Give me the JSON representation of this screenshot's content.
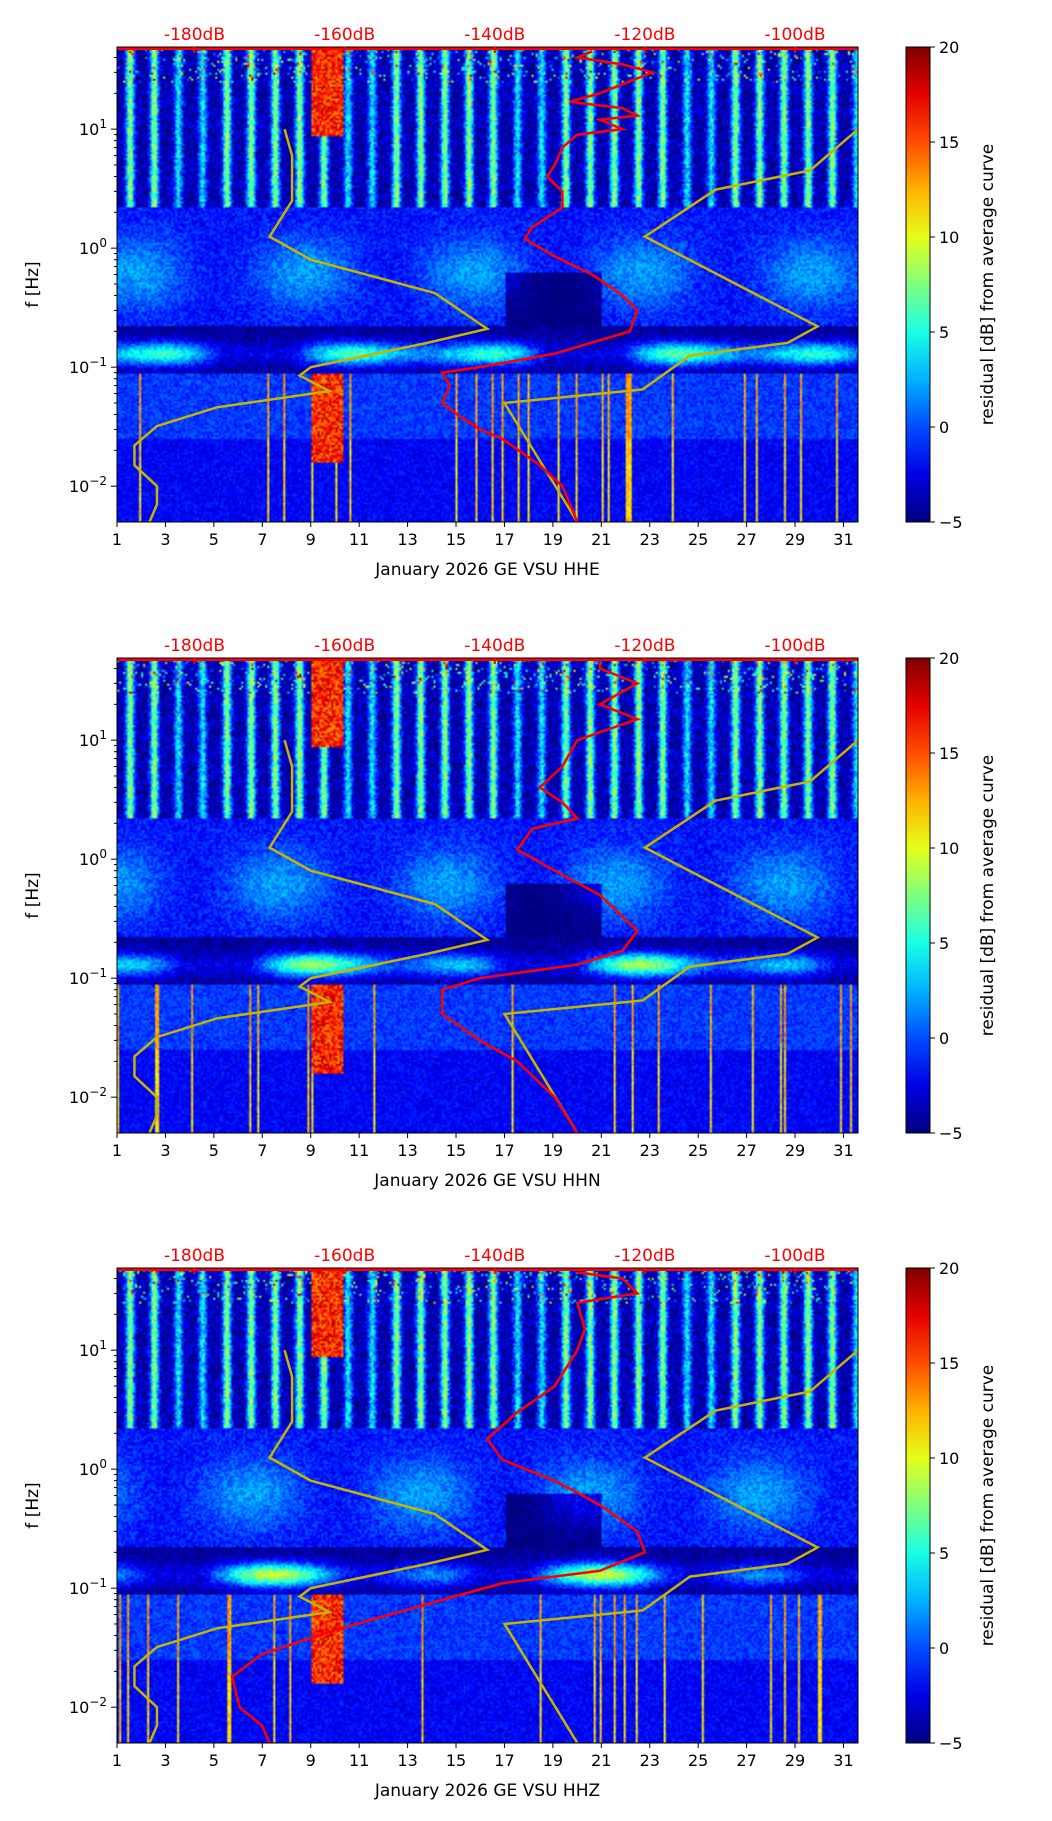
{
  "colorbar": {
    "label": "residual [dB] from average curve",
    "range": [
      -5,
      20
    ],
    "ticks": [
      -5,
      0,
      5,
      10,
      15,
      20
    ],
    "colormap": "jet"
  },
  "noise_models": {
    "low": [
      [
        -168,
        10
      ],
      [
        -167,
        6
      ],
      [
        -167,
        2.5
      ],
      [
        -170,
        1.25
      ],
      [
        -164.5,
        0.8
      ],
      [
        -148,
        0.42
      ],
      [
        -141,
        0.21
      ],
      [
        -149,
        0.16
      ],
      [
        -164.5,
        0.1
      ],
      [
        -166,
        0.085
      ],
      [
        -162,
        0.063
      ],
      [
        -177,
        0.046
      ],
      [
        -185,
        0.032
      ],
      [
        -188,
        0.022
      ],
      [
        -188,
        0.015
      ],
      [
        -185,
        0.01
      ],
      [
        -185,
        0.007
      ],
      [
        -186,
        0.005
      ]
    ],
    "high": [
      [
        -91.6,
        10
      ],
      [
        -98,
        4.5
      ],
      [
        -110.6,
        3.1
      ],
      [
        -120,
        1.25
      ],
      [
        -97,
        0.22
      ],
      [
        -101,
        0.16
      ],
      [
        -114,
        0.125
      ],
      [
        -120.3,
        0.065
      ],
      [
        -138.7,
        0.05
      ],
      [
        -129,
        0.005
      ]
    ],
    "color": "#c8b400"
  },
  "chart_data": [
    {
      "type": "heatmap",
      "channel": "HHE",
      "xlabel": "January 2026 GE VSU  HHE",
      "ylabel": "f [Hz]",
      "xlim": [
        1,
        31.6
      ],
      "ylim": [
        0.005,
        49
      ],
      "yscale": "log",
      "xticks": [
        1,
        3,
        5,
        7,
        9,
        11,
        13,
        15,
        17,
        19,
        21,
        23,
        25,
        27,
        29,
        31
      ],
      "yticks": [
        "10^-2",
        "10^-1",
        "10^0",
        "10^1"
      ],
      "top_axis": {
        "ticks_db": [
          -180,
          -160,
          -140,
          -120,
          -100
        ],
        "labels": [
          "-180dB",
          "-160dB",
          "-140dB",
          "-120dB",
          "-100dB"
        ],
        "color": "#ff0000"
      },
      "average_curve_db_hz": [
        [
          -127,
          45
        ],
        [
          -129,
          40
        ],
        [
          -123,
          35
        ],
        [
          -119,
          30
        ],
        [
          -126,
          20
        ],
        [
          -130,
          17
        ],
        [
          -123,
          15
        ],
        [
          -121,
          13
        ],
        [
          -126,
          12
        ],
        [
          -123,
          10
        ],
        [
          -129,
          9
        ],
        [
          -131,
          7
        ],
        [
          -132,
          5
        ],
        [
          -133,
          4
        ],
        [
          -131,
          3
        ],
        [
          -131,
          2.2
        ],
        [
          -135,
          1.5
        ],
        [
          -136,
          1.2
        ],
        [
          -132,
          0.85
        ],
        [
          -127,
          0.6
        ],
        [
          -123,
          0.4
        ],
        [
          -121,
          0.3
        ],
        [
          -122,
          0.2
        ],
        [
          -132,
          0.13
        ],
        [
          -142,
          0.1
        ],
        [
          -147,
          0.09
        ],
        [
          -146,
          0.07
        ],
        [
          -147,
          0.05
        ],
        [
          -145,
          0.04
        ],
        [
          -142,
          0.03
        ],
        [
          -139,
          0.025
        ],
        [
          -134,
          0.015
        ],
        [
          -131,
          0.01
        ],
        [
          -129,
          0.005
        ]
      ],
      "seed": 11
    },
    {
      "type": "heatmap",
      "channel": "HHN",
      "xlabel": "January 2026 GE VSU  HHN",
      "ylabel": "f [Hz]",
      "xlim": [
        1,
        31.6
      ],
      "ylim": [
        0.005,
        49
      ],
      "yscale": "log",
      "xticks": [
        1,
        3,
        5,
        7,
        9,
        11,
        13,
        15,
        17,
        19,
        21,
        23,
        25,
        27,
        29,
        31
      ],
      "yticks": [
        "10^-2",
        "10^-1",
        "10^0",
        "10^1"
      ],
      "top_axis": {
        "ticks_db": [
          -180,
          -160,
          -140,
          -120,
          -100
        ],
        "labels": [
          "-180dB",
          "-160dB",
          "-140dB",
          "-120dB",
          "-100dB"
        ],
        "color": "#ff0000"
      },
      "average_curve_db_hz": [
        [
          -126,
          45
        ],
        [
          -126,
          40
        ],
        [
          -121,
          30
        ],
        [
          -126,
          20
        ],
        [
          -121,
          15
        ],
        [
          -129,
          10
        ],
        [
          -131,
          6
        ],
        [
          -134,
          4
        ],
        [
          -131,
          3
        ],
        [
          -129,
          2.2
        ],
        [
          -135,
          1.8
        ],
        [
          -137,
          1.2
        ],
        [
          -132,
          0.8
        ],
        [
          -126,
          0.5
        ],
        [
          -121,
          0.25
        ],
        [
          -123,
          0.17
        ],
        [
          -129,
          0.13
        ],
        [
          -142,
          0.1
        ],
        [
          -147,
          0.08
        ],
        [
          -147,
          0.05
        ],
        [
          -142,
          0.03
        ],
        [
          -137,
          0.02
        ],
        [
          -132,
          0.01
        ],
        [
          -129,
          0.005
        ]
      ],
      "seed": 23
    },
    {
      "type": "heatmap",
      "channel": "HHZ",
      "xlabel": "January 2026 GE VSU  HHZ",
      "ylabel": "f [Hz]",
      "xlim": [
        1,
        31.6
      ],
      "ylim": [
        0.005,
        49
      ],
      "yscale": "log",
      "xticks": [
        1,
        3,
        5,
        7,
        9,
        11,
        13,
        15,
        17,
        19,
        21,
        23,
        25,
        27,
        29,
        31
      ],
      "yticks": [
        "10^-2",
        "10^-1",
        "10^0",
        "10^1"
      ],
      "top_axis": {
        "ticks_db": [
          -180,
          -160,
          -140,
          -120,
          -100
        ],
        "labels": [
          "-180dB",
          "-160dB",
          "-140dB",
          "-120dB",
          "-100dB"
        ],
        "color": "#ff0000"
      },
      "average_curve_db_hz": [
        [
          -129,
          45
        ],
        [
          -123,
          40
        ],
        [
          -121,
          30
        ],
        [
          -129,
          25
        ],
        [
          -128,
          15
        ],
        [
          -129,
          10
        ],
        [
          -132,
          5
        ],
        [
          -137,
          3
        ],
        [
          -141,
          1.8
        ],
        [
          -139,
          1.2
        ],
        [
          -132,
          0.8
        ],
        [
          -126,
          0.5
        ],
        [
          -121,
          0.3
        ],
        [
          -120,
          0.2
        ],
        [
          -126,
          0.14
        ],
        [
          -139,
          0.11
        ],
        [
          -144,
          0.09
        ],
        [
          -152,
          0.065
        ],
        [
          -161,
          0.045
        ],
        [
          -171,
          0.028
        ],
        [
          -175,
          0.018
        ],
        [
          -174,
          0.01
        ],
        [
          -171,
          0.007
        ],
        [
          -170,
          0.005
        ]
      ],
      "seed": 37
    }
  ]
}
